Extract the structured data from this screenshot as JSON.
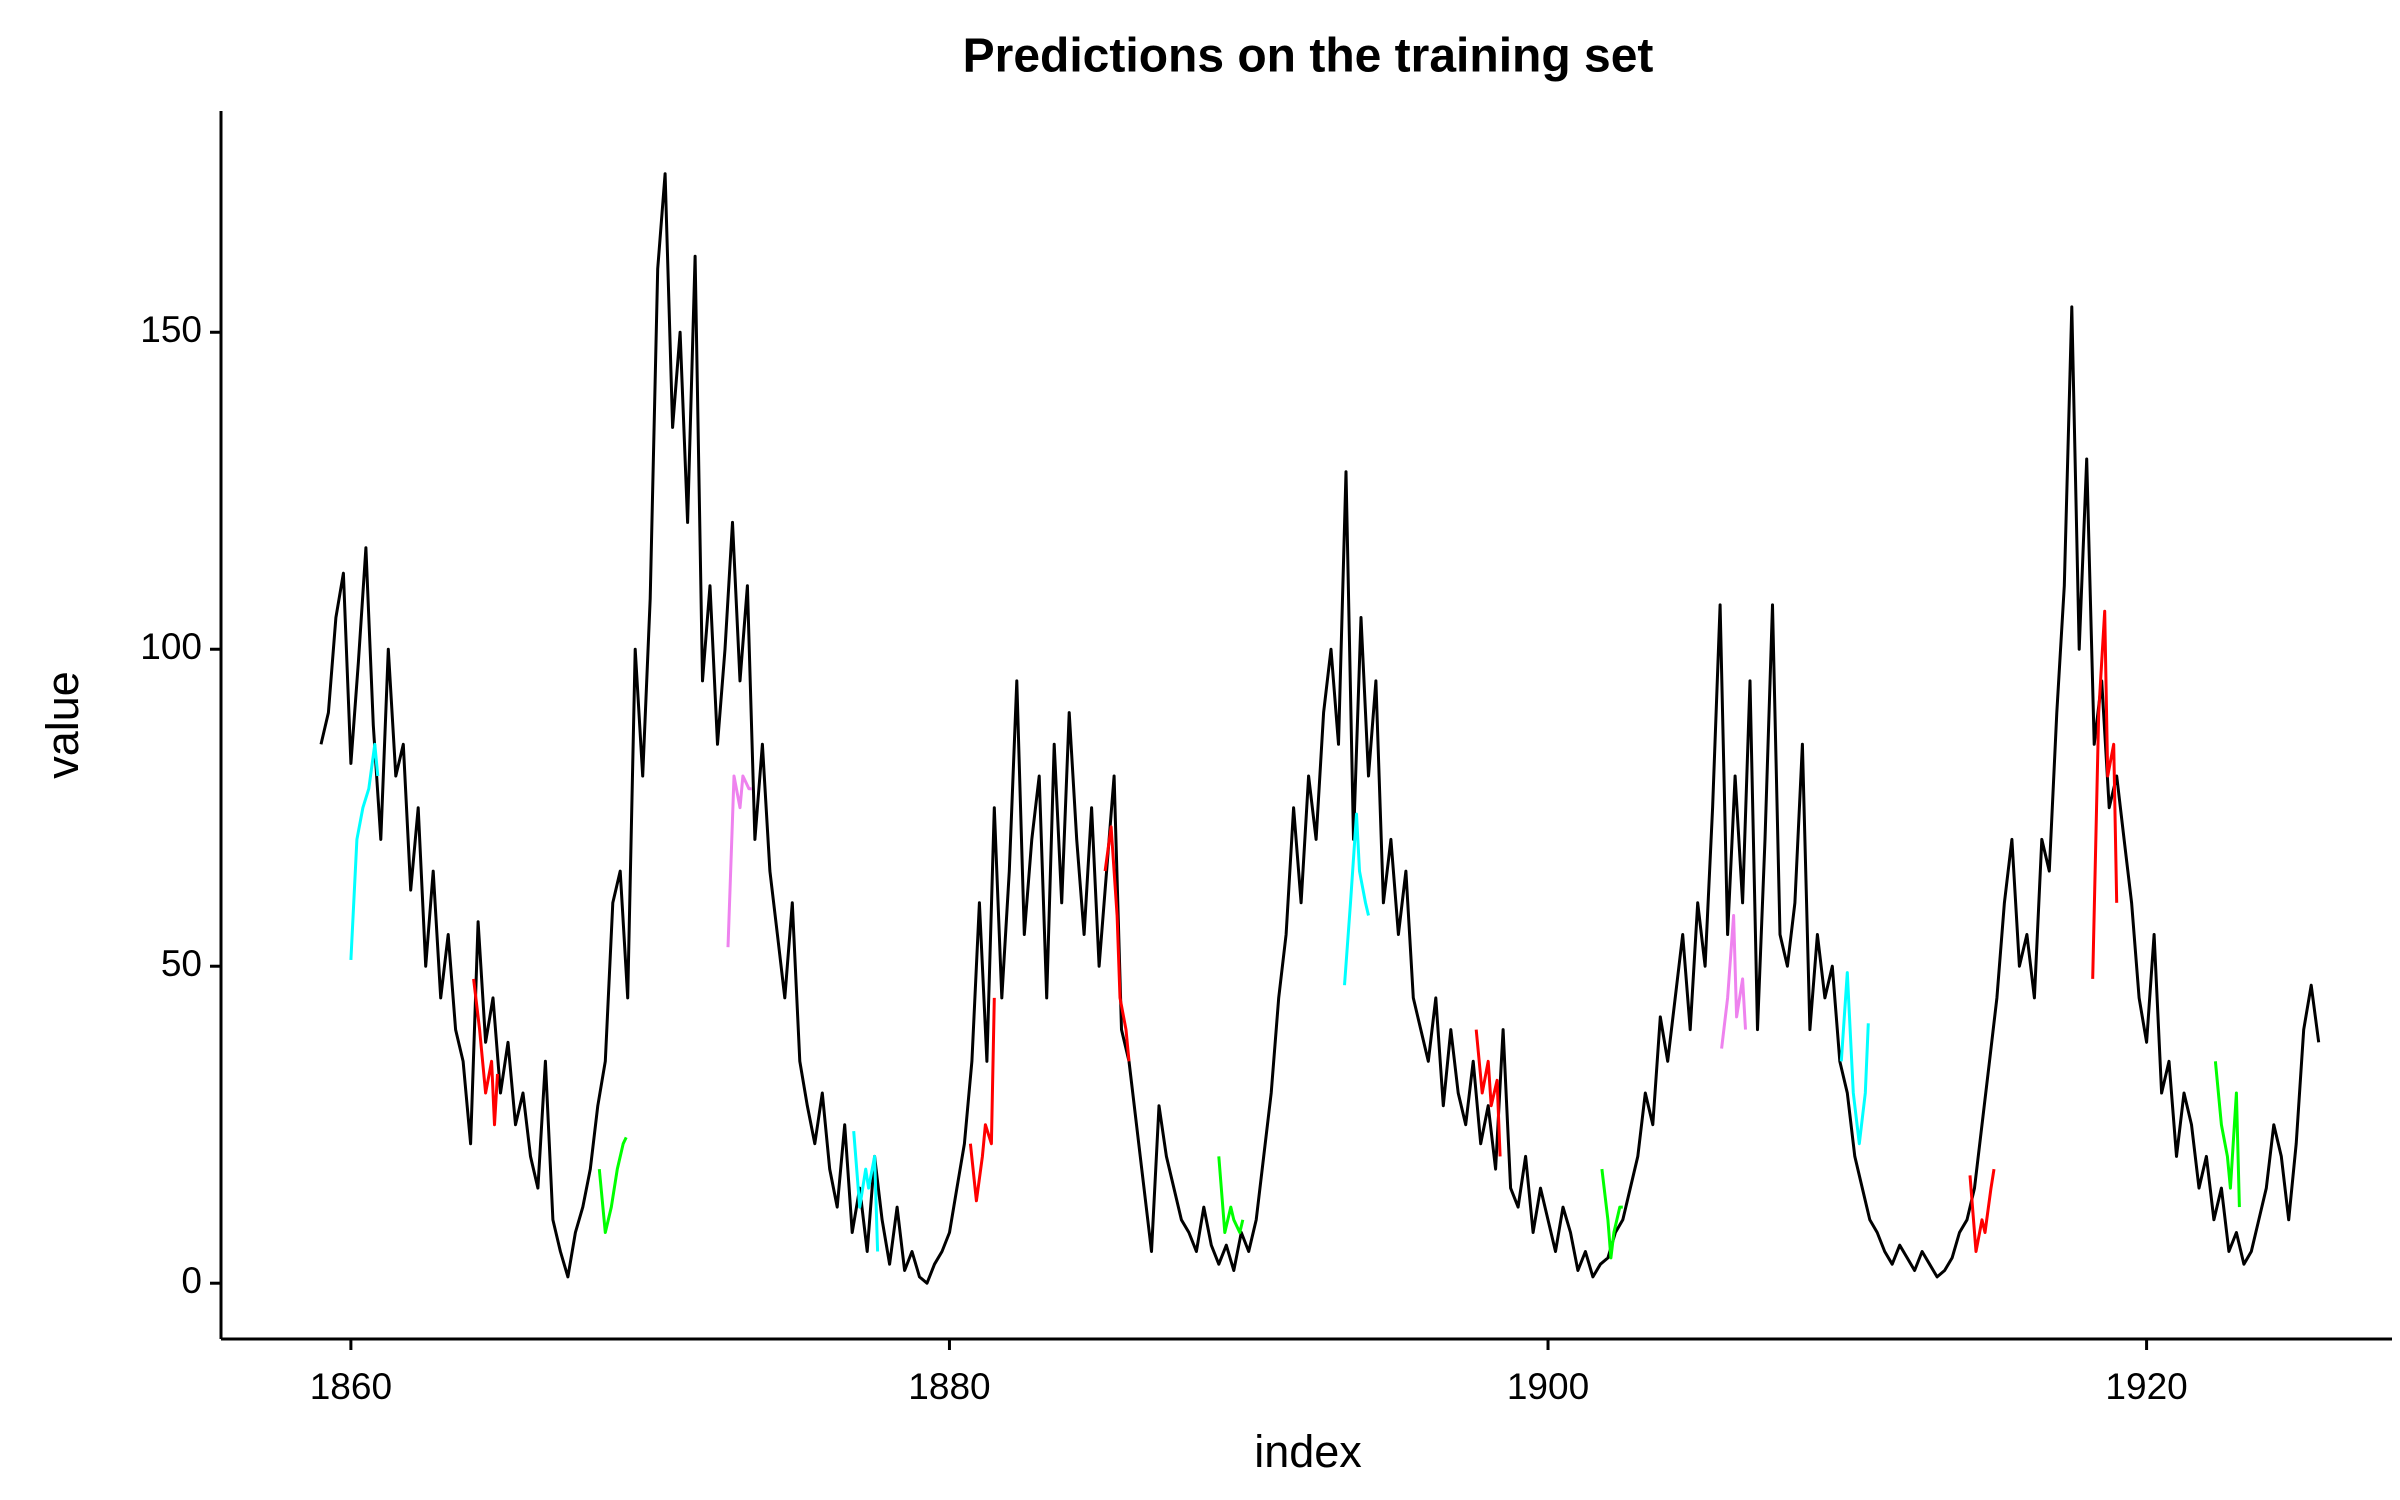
{
  "chart_data": {
    "type": "line",
    "title": "Predictions on the training set",
    "x_label": "index",
    "y_label": "value",
    "xlim": [
      1855.66,
      1928.2
    ],
    "ylim": [
      -8.8,
      184.9
    ],
    "xticks": [
      1860,
      1880,
      1900,
      1920
    ],
    "yticks": [
      0,
      50,
      100,
      150
    ],
    "series": [
      {
        "color": "#000000",
        "x": [
          1859,
          1859.25,
          1859.5,
          1859.75,
          1860,
          1860.25,
          1860.5,
          1860.75,
          1861,
          1861.25,
          1861.5,
          1861.75,
          1862,
          1862.25,
          1862.5,
          1862.75,
          1863,
          1863.25,
          1863.5,
          1863.75,
          1864,
          1864.25,
          1864.5,
          1864.75,
          1865,
          1865.25,
          1865.5,
          1865.75,
          1866,
          1866.25,
          1866.5,
          1866.75,
          1867,
          1867.25,
          1867.5,
          1867.75,
          1868,
          1868.25,
          1868.5,
          1868.75,
          1869,
          1869.25,
          1869.5,
          1869.75,
          1870,
          1870.25,
          1870.5,
          1870.75,
          1871,
          1871.25,
          1871.5,
          1871.75,
          1872,
          1872.25,
          1872.5,
          1872.75,
          1873,
          1873.25,
          1873.5,
          1873.75,
          1874,
          1874.25,
          1874.5,
          1874.75,
          1875,
          1875.25,
          1875.5,
          1875.75,
          1876,
          1876.25,
          1876.5,
          1876.75,
          1877,
          1877.25,
          1877.5,
          1877.75,
          1878,
          1878.25,
          1878.5,
          1878.75,
          1879,
          1879.25,
          1879.5,
          1879.75,
          1880,
          1880.25,
          1880.5,
          1880.75,
          1881,
          1881.25,
          1881.5,
          1881.75,
          1882,
          1882.25,
          1882.5,
          1882.75,
          1883,
          1883.25,
          1883.5,
          1883.75,
          1884,
          1884.25,
          1884.5,
          1884.75,
          1885,
          1885.25,
          1885.5,
          1885.75,
          1886,
          1886.25,
          1886.5,
          1886.75,
          1887,
          1887.25,
          1887.5,
          1887.75,
          1888,
          1888.25,
          1888.5,
          1888.75,
          1889,
          1889.25,
          1889.5,
          1889.75,
          1890,
          1890.25,
          1890.5,
          1890.75,
          1891,
          1891.25,
          1891.5,
          1891.75,
          1892,
          1892.25,
          1892.5,
          1892.75,
          1893,
          1893.25,
          1893.5,
          1893.75,
          1894,
          1894.25,
          1894.5,
          1894.75,
          1895,
          1895.25,
          1895.5,
          1895.75,
          1896,
          1896.25,
          1896.5,
          1896.75,
          1897,
          1897.25,
          1897.5,
          1897.75,
          1898,
          1898.25,
          1898.5,
          1898.75,
          1899,
          1899.25,
          1899.5,
          1899.75,
          1900,
          1900.25,
          1900.5,
          1900.75,
          1901,
          1901.25,
          1901.5,
          1901.75,
          1902,
          1902.25,
          1902.5,
          1902.75,
          1903,
          1903.25,
          1903.5,
          1903.75,
          1904,
          1904.25,
          1904.5,
          1904.75,
          1905,
          1905.25,
          1905.5,
          1905.75,
          1906,
          1906.25,
          1906.5,
          1906.75,
          1907,
          1907.25,
          1907.5,
          1907.75,
          1908,
          1908.25,
          1908.5,
          1908.75,
          1909,
          1909.25,
          1909.5,
          1909.75,
          1910,
          1910.25,
          1910.5,
          1910.75,
          1911,
          1911.25,
          1911.5,
          1911.75,
          1912,
          1912.25,
          1912.5,
          1912.75,
          1913,
          1913.25,
          1913.5,
          1913.75,
          1914,
          1914.25,
          1914.5,
          1914.75,
          1915,
          1915.25,
          1915.5,
          1915.75,
          1916,
          1916.25,
          1916.5,
          1916.75,
          1917,
          1917.25,
          1917.5,
          1917.75,
          1918,
          1918.25,
          1918.5,
          1918.75,
          1919,
          1919.25,
          1919.5,
          1919.75,
          1920,
          1920.25,
          1920.5,
          1920.75,
          1921,
          1921.25,
          1921.5,
          1921.75,
          1922,
          1922.25,
          1922.5,
          1922.75,
          1923,
          1923.25,
          1923.5,
          1923.75,
          1924,
          1924.25,
          1924.5,
          1924.75,
          1925,
          1925.25,
          1925.5,
          1925.75
        ],
        "values": [
          85,
          90,
          105,
          112,
          82,
          98,
          116,
          88,
          70,
          100,
          80,
          85,
          62,
          75,
          50,
          65,
          45,
          55,
          40,
          35,
          22,
          57,
          38,
          45,
          30,
          38,
          25,
          30,
          20,
          15,
          35,
          10,
          5,
          1,
          8,
          12,
          18,
          28,
          35,
          60,
          65,
          45,
          100,
          80,
          108,
          160,
          175,
          135,
          150,
          120,
          162,
          95,
          110,
          85,
          100,
          120,
          95,
          110,
          70,
          85,
          65,
          55,
          45,
          60,
          35,
          28,
          22,
          30,
          18,
          12,
          25,
          8,
          15,
          5,
          20,
          10,
          3,
          12,
          2,
          5,
          1,
          0,
          3,
          5,
          8,
          15,
          22,
          35,
          60,
          35,
          75,
          45,
          65,
          95,
          55,
          70,
          80,
          45,
          85,
          60,
          90,
          70,
          55,
          75,
          50,
          65,
          80,
          40,
          35,
          25,
          15,
          5,
          28,
          20,
          15,
          10,
          8,
          5,
          12,
          6,
          3,
          6,
          2,
          8,
          5,
          10,
          20,
          30,
          45,
          55,
          75,
          60,
          80,
          70,
          90,
          100,
          85,
          128,
          70,
          105,
          80,
          95,
          60,
          70,
          55,
          65,
          45,
          40,
          35,
          45,
          28,
          40,
          30,
          25,
          35,
          22,
          28,
          18,
          40,
          15,
          12,
          20,
          8,
          15,
          10,
          5,
          12,
          8,
          2,
          5,
          1,
          3,
          4,
          8,
          10,
          15,
          20,
          30,
          25,
          42,
          35,
          45,
          55,
          40,
          60,
          50,
          75,
          107,
          55,
          80,
          60,
          95,
          40,
          70,
          107,
          55,
          50,
          60,
          85,
          40,
          55,
          45,
          50,
          35,
          30,
          20,
          15,
          10,
          8,
          5,
          3,
          6,
          4,
          2,
          5,
          3,
          1,
          2,
          4,
          8,
          10,
          15,
          25,
          35,
          45,
          60,
          70,
          50,
          55,
          45,
          70,
          65,
          90,
          110,
          154,
          100,
          130,
          85,
          95,
          75,
          80,
          70,
          60,
          45,
          38,
          55,
          30,
          35,
          20,
          30,
          25,
          15,
          20,
          10,
          15,
          5,
          8,
          3,
          5,
          10,
          15,
          25,
          20,
          10,
          22,
          40,
          47,
          38
        ]
      },
      {
        "color": "#00ffff",
        "x": [
          1860,
          1860.2,
          1860.4,
          1860.6,
          1860.8,
          1860.9
        ],
        "values": [
          51,
          70,
          75,
          78,
          85,
          80
        ]
      },
      {
        "color": "#ff0000",
        "x": [
          1864.1,
          1864.3,
          1864.5,
          1864.7,
          1864.8,
          1864.9
        ],
        "values": [
          48,
          40,
          30,
          35,
          25,
          33
        ]
      },
      {
        "color": "#00ff00",
        "x": [
          1868.3,
          1868.5,
          1868.7,
          1868.9,
          1869.1,
          1869.2
        ],
        "values": [
          18,
          8,
          12,
          18,
          22,
          23
        ]
      },
      {
        "color": "#ee82ee",
        "x": [
          1872.6,
          1872.8,
          1873,
          1873.1,
          1873.3,
          1873.4
        ],
        "values": [
          53,
          80,
          75,
          80,
          78,
          78
        ]
      },
      {
        "color": "#00ffff",
        "x": [
          1876.8,
          1877,
          1877.2,
          1877.3,
          1877.5,
          1877.6
        ],
        "values": [
          24,
          12,
          18,
          15,
          20,
          5
        ]
      },
      {
        "color": "#ff0000",
        "x": [
          1880.7,
          1880.9,
          1881.1,
          1881.2,
          1881.4,
          1881.5
        ],
        "values": [
          22,
          13,
          20,
          25,
          22,
          45
        ]
      },
      {
        "color": "#ff0000",
        "x": [
          1885.2,
          1885.4,
          1885.6,
          1885.7,
          1885.9,
          1886
        ],
        "values": [
          65,
          72,
          58,
          45,
          40,
          35
        ]
      },
      {
        "color": "#00ff00",
        "x": [
          1889,
          1889.2,
          1889.4,
          1889.5,
          1889.7,
          1889.8
        ],
        "values": [
          20,
          8,
          12,
          10,
          8,
          10
        ]
      },
      {
        "color": "#00ffff",
        "x": [
          1893.2,
          1893.4,
          1893.6,
          1893.7,
          1893.9,
          1894
        ],
        "values": [
          47,
          60,
          74,
          65,
          60,
          58
        ]
      },
      {
        "color": "#ff0000",
        "x": [
          1897.6,
          1897.8,
          1898,
          1898.1,
          1898.3,
          1898.4
        ],
        "values": [
          40,
          30,
          35,
          28,
          32,
          20
        ]
      },
      {
        "color": "#00ff00",
        "x": [
          1901.8,
          1902,
          1902.1,
          1902.2,
          1902.4,
          1902.5
        ],
        "values": [
          18,
          10,
          4,
          8,
          12,
          12
        ]
      },
      {
        "color": "#ee82ee",
        "x": [
          1905.8,
          1906,
          1906.2,
          1906.3,
          1906.5,
          1906.6
        ],
        "values": [
          37,
          45,
          58,
          42,
          48,
          40
        ]
      },
      {
        "color": "#00ffff",
        "x": [
          1909.8,
          1910,
          1910.2,
          1910.4,
          1910.6,
          1910.7
        ],
        "values": [
          35,
          49,
          30,
          22,
          30,
          41
        ]
      },
      {
        "color": "#ff0000",
        "x": [
          1914.1,
          1914.3,
          1914.5,
          1914.6,
          1914.8,
          1914.9
        ],
        "values": [
          17,
          5,
          10,
          8,
          15,
          18
        ]
      },
      {
        "color": "#ff0000",
        "x": [
          1918.2,
          1918.4,
          1918.6,
          1918.7,
          1918.9,
          1919
        ],
        "values": [
          48,
          90,
          106,
          80,
          85,
          60
        ]
      },
      {
        "color": "#00ff00",
        "x": [
          1922.3,
          1922.5,
          1922.7,
          1922.8,
          1923,
          1923.1
        ],
        "values": [
          35,
          25,
          20,
          15,
          30,
          12
        ]
      }
    ]
  }
}
